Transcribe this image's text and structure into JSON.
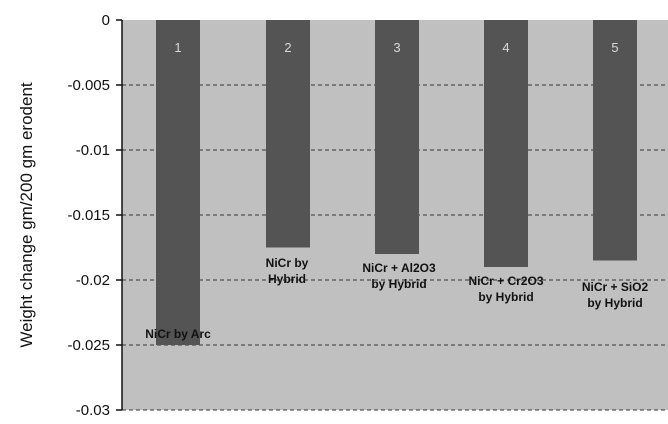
{
  "chart_data": {
    "type": "bar",
    "ylabel": "Weight change gm/200 gm erodent",
    "ylim": [
      -0.03,
      0
    ],
    "yticks": [
      "0",
      "-0.005",
      "-0.01",
      "-0.015",
      "-0.02",
      "-0.025",
      "-0.03"
    ],
    "grid": true,
    "plot_background": "#c0c0c0",
    "bar_color": "#545454",
    "categories": [
      {
        "number": "1",
        "label_lines": [
          "NiCr by Arc"
        ]
      },
      {
        "number": "2",
        "label_lines": [
          "NiCr by",
          "Hybrid"
        ]
      },
      {
        "number": "3",
        "label_lines": [
          "NiCr + Al2O3",
          "by Hybrid"
        ]
      },
      {
        "number": "4",
        "label_lines": [
          "NiCr + Cr2O3",
          "by Hybrid"
        ]
      },
      {
        "number": "5",
        "label_lines": [
          "NiCr + SiO2",
          "by Hybrid"
        ]
      }
    ],
    "values": [
      -0.025,
      -0.0175,
      -0.018,
      -0.019,
      -0.0185
    ]
  }
}
